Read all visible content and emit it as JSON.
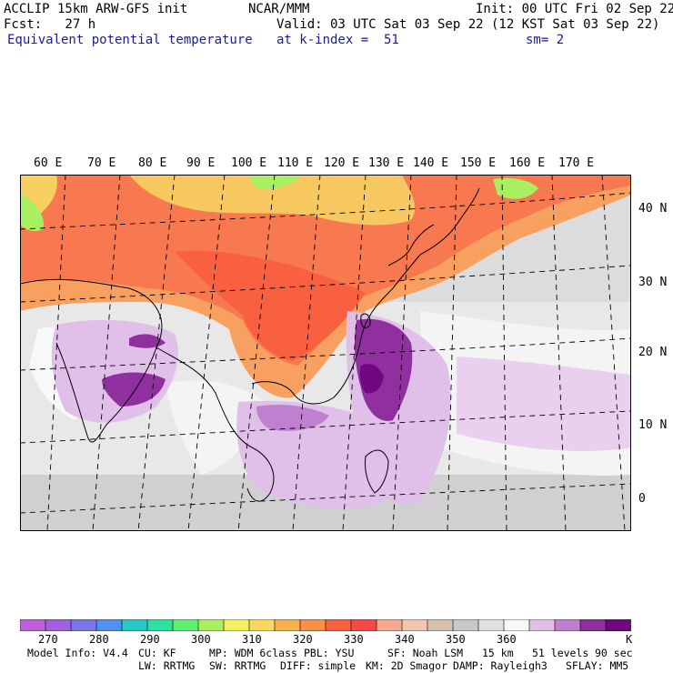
{
  "header": {
    "model": "ACCLIP 15km ARW-GFS init",
    "center": "NCAR/MMM",
    "init": "Init: 00 UTC Fri 02 Sep 22",
    "fcst": "Fcst:   27 h",
    "valid": "Valid: 03 UTC Sat 03 Sep 22 (12 KST Sat 03 Sep 22)",
    "field": "Equivalent potential temperature",
    "level": "at k-index =  51",
    "smooth": "sm= 2"
  },
  "map": {
    "lon_labels": [
      "60 E",
      "70 E",
      "80 E",
      "90 E",
      "100 E",
      "110 E",
      "120 E",
      "130 E",
      "140 E",
      "150 E",
      "160 E",
      "170 E"
    ],
    "lat_labels": [
      "40 N",
      "30 N",
      "20 N",
      "10 N",
      "0"
    ]
  },
  "colorbar": {
    "colors": [
      "#c060d8",
      "#a060e0",
      "#7878e8",
      "#5090f0",
      "#28c8c8",
      "#30e0a0",
      "#60f070",
      "#a8f060",
      "#f0f060",
      "#f8d860",
      "#f8b050",
      "#f89048",
      "#f86040",
      "#f84848",
      "#f8a890",
      "#f0c8b0",
      "#d8c0b0",
      "#c8c8c8",
      "#e0e0e0",
      "#f8f8f8",
      "#e0c0e8",
      "#c080d0",
      "#9030a0",
      "#700880"
    ],
    "ticks": [
      "270",
      "280",
      "290",
      "300",
      "310",
      "320",
      "330",
      "340",
      "350",
      "360"
    ],
    "unit": "K"
  },
  "footer": {
    "model_info": "Model Info: V4.4",
    "cu": "CU: KF",
    "mp": "MP: WDM 6class",
    "pbl": "PBL: YSU",
    "sf": "SF: Noah LSM",
    "res": "15 km",
    "levels": "51 levels",
    "dt": "90 sec",
    "lw": "LW: RRTMG",
    "sw": "SW: RRTMG",
    "diff": "DIFF: simple",
    "km": "KM: 2D Smagor",
    "damp": "DAMP: Rayleigh3",
    "sflay": "SFLAY: MM5"
  }
}
